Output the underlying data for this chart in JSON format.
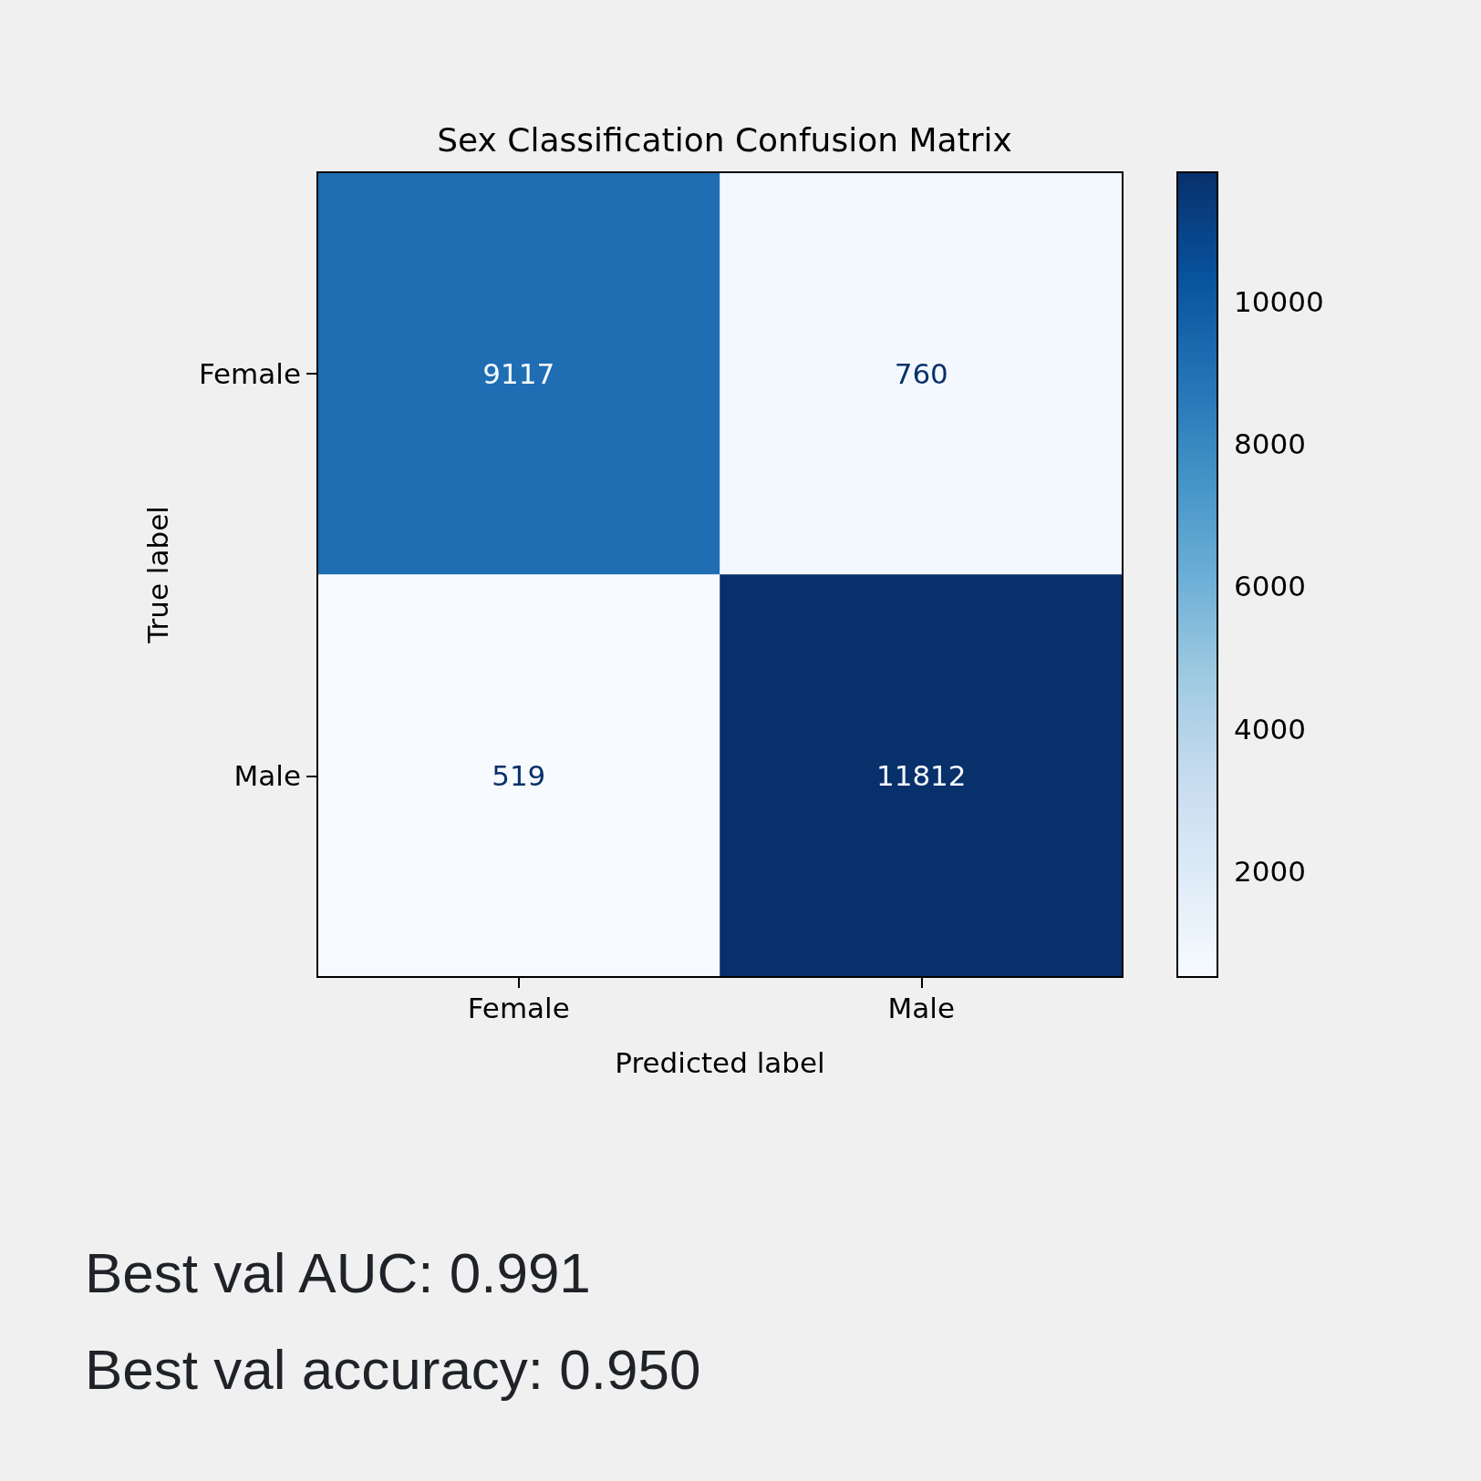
{
  "chart_data": {
    "type": "heatmap",
    "title": "Sex Classification Confusion Matrix",
    "xlabel": "Predicted label",
    "ylabel": "True label",
    "categories": [
      "Female",
      "Male"
    ],
    "y_categories": [
      "Female",
      "Male"
    ],
    "cells": [
      [
        9117,
        760
      ],
      [
        519,
        11812
      ]
    ],
    "data_labels": true,
    "clim": [
      519,
      11812
    ],
    "cticks": [
      2000,
      4000,
      6000,
      8000,
      10000
    ],
    "annotations": [
      "Best val AUC: 0.991",
      "Best val accuracy: 0.950"
    ]
  }
}
